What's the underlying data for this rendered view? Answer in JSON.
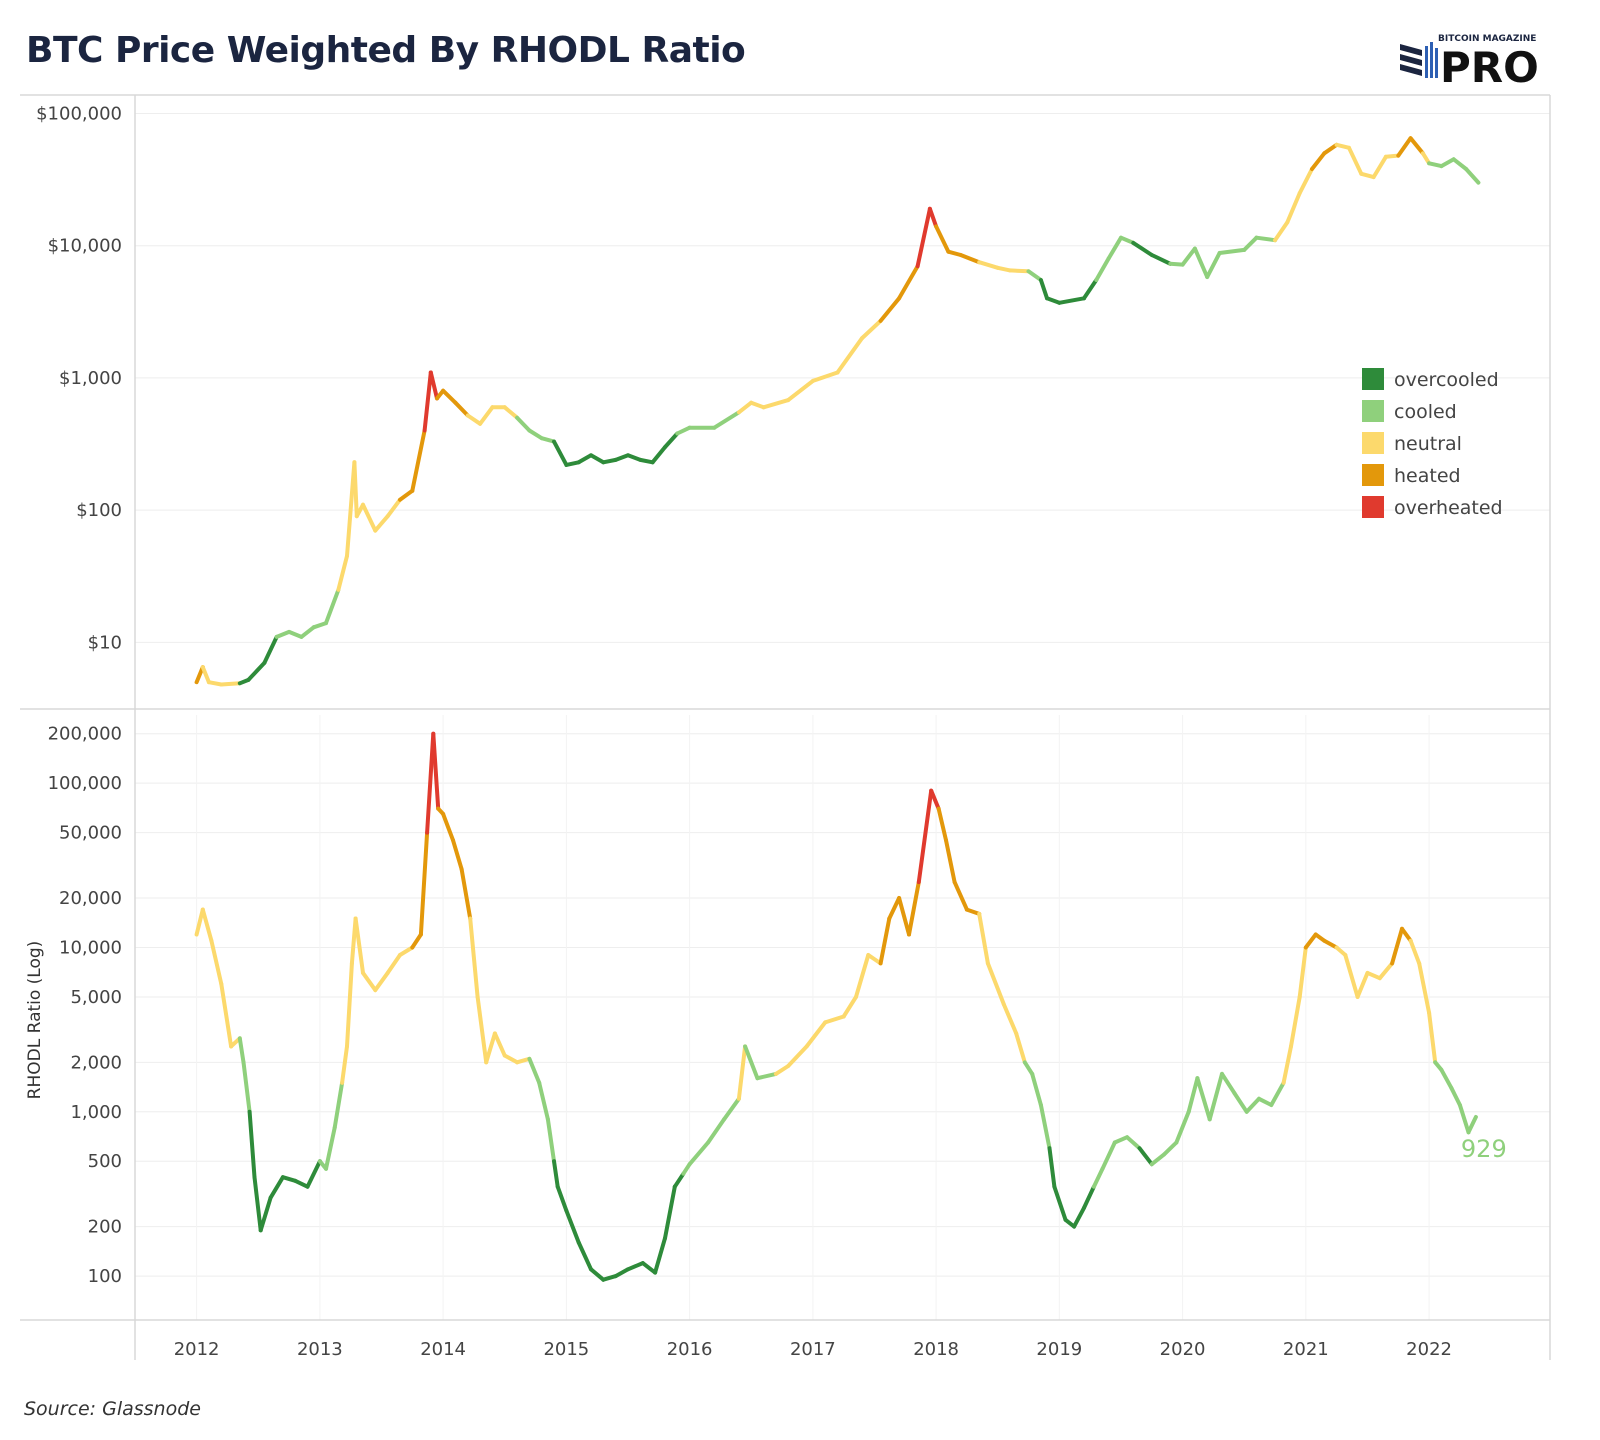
{
  "title": "BTC Price Weighted By RHODL Ratio",
  "logo": {
    "top_text": "BITCOIN MAGAZINE",
    "main_text": "PRO"
  },
  "source": "Source: Glassnode",
  "colors": {
    "overcooled": "#2e8b3a",
    "cooled": "#8fd07c",
    "neutral": "#fcd96c",
    "heated": "#e3980b",
    "overheated": "#e03a2e",
    "title": "#1b2540",
    "grid": "#eeeeee",
    "border": "#d8d8d8"
  },
  "chart_data": [
    {
      "type": "line",
      "name": "price",
      "y_scale": "log",
      "ylim": [
        4,
        120000
      ],
      "y_ticks": [
        {
          "value": 100000,
          "label": "$100,000"
        },
        {
          "value": 10000,
          "label": "$10,000"
        },
        {
          "value": 1000,
          "label": "$1,000"
        },
        {
          "value": 100,
          "label": "$100"
        },
        {
          "value": 10,
          "label": "$10"
        }
      ],
      "legend": {
        "position": "right",
        "entries": [
          {
            "key": "overcooled",
            "label": "overcooled"
          },
          {
            "key": "cooled",
            "label": "cooled"
          },
          {
            "key": "neutral",
            "label": "neutral"
          },
          {
            "key": "heated",
            "label": "heated"
          },
          {
            "key": "overheated",
            "label": "overheated"
          }
        ]
      },
      "points": [
        [
          2012.0,
          5,
          "heated"
        ],
        [
          2012.05,
          6.5,
          "heated"
        ],
        [
          2012.1,
          5,
          "neutral"
        ],
        [
          2012.2,
          4.8,
          "neutral"
        ],
        [
          2012.35,
          4.9,
          "neutral"
        ],
        [
          2012.42,
          5.2,
          "overcooled"
        ],
        [
          2012.55,
          7,
          "overcooled"
        ],
        [
          2012.65,
          11,
          "overcooled"
        ],
        [
          2012.75,
          12,
          "cooled"
        ],
        [
          2012.85,
          11,
          "cooled"
        ],
        [
          2012.95,
          13,
          "cooled"
        ],
        [
          2013.05,
          14,
          "cooled"
        ],
        [
          2013.15,
          25,
          "cooled"
        ],
        [
          2013.22,
          45,
          "neutral"
        ],
        [
          2013.28,
          230,
          "neutral"
        ],
        [
          2013.3,
          90,
          "neutral"
        ],
        [
          2013.35,
          110,
          "neutral"
        ],
        [
          2013.45,
          70,
          "neutral"
        ],
        [
          2013.55,
          90,
          "neutral"
        ],
        [
          2013.65,
          120,
          "neutral"
        ],
        [
          2013.75,
          140,
          "heated"
        ],
        [
          2013.85,
          400,
          "heated"
        ],
        [
          2013.9,
          1100,
          "overheated"
        ],
        [
          2013.95,
          700,
          "overheated"
        ],
        [
          2014.0,
          800,
          "heated"
        ],
        [
          2014.1,
          650,
          "heated"
        ],
        [
          2014.2,
          520,
          "heated"
        ],
        [
          2014.3,
          450,
          "neutral"
        ],
        [
          2014.4,
          600,
          "neutral"
        ],
        [
          2014.5,
          600,
          "neutral"
        ],
        [
          2014.6,
          500,
          "neutral"
        ],
        [
          2014.7,
          400,
          "cooled"
        ],
        [
          2014.8,
          350,
          "cooled"
        ],
        [
          2014.9,
          330,
          "cooled"
        ],
        [
          2015.0,
          220,
          "overcooled"
        ],
        [
          2015.1,
          230,
          "overcooled"
        ],
        [
          2015.2,
          260,
          "overcooled"
        ],
        [
          2015.3,
          230,
          "overcooled"
        ],
        [
          2015.4,
          240,
          "overcooled"
        ],
        [
          2015.5,
          260,
          "overcooled"
        ],
        [
          2015.6,
          240,
          "overcooled"
        ],
        [
          2015.7,
          230,
          "overcooled"
        ],
        [
          2015.8,
          300,
          "overcooled"
        ],
        [
          2015.9,
          380,
          "overcooled"
        ],
        [
          2016.0,
          420,
          "cooled"
        ],
        [
          2016.2,
          420,
          "cooled"
        ],
        [
          2016.4,
          550,
          "cooled"
        ],
        [
          2016.5,
          650,
          "neutral"
        ],
        [
          2016.6,
          600,
          "neutral"
        ],
        [
          2016.8,
          680,
          "neutral"
        ],
        [
          2017.0,
          950,
          "neutral"
        ],
        [
          2017.2,
          1100,
          "neutral"
        ],
        [
          2017.4,
          2000,
          "neutral"
        ],
        [
          2017.55,
          2700,
          "neutral"
        ],
        [
          2017.7,
          4000,
          "heated"
        ],
        [
          2017.85,
          7000,
          "heated"
        ],
        [
          2017.95,
          19000,
          "overheated"
        ],
        [
          2018.0,
          14000,
          "overheated"
        ],
        [
          2018.1,
          9000,
          "heated"
        ],
        [
          2018.2,
          8500,
          "heated"
        ],
        [
          2018.35,
          7500,
          "heated"
        ],
        [
          2018.5,
          6800,
          "neutral"
        ],
        [
          2018.6,
          6500,
          "neutral"
        ],
        [
          2018.75,
          6400,
          "neutral"
        ],
        [
          2018.85,
          5500,
          "cooled"
        ],
        [
          2018.9,
          4000,
          "overcooled"
        ],
        [
          2019.0,
          3700,
          "overcooled"
        ],
        [
          2019.2,
          4000,
          "overcooled"
        ],
        [
          2019.3,
          5500,
          "overcooled"
        ],
        [
          2019.4,
          8000,
          "cooled"
        ],
        [
          2019.5,
          11500,
          "cooled"
        ],
        [
          2019.6,
          10500,
          "cooled"
        ],
        [
          2019.75,
          8500,
          "overcooled"
        ],
        [
          2019.9,
          7300,
          "overcooled"
        ],
        [
          2020.0,
          7200,
          "cooled"
        ],
        [
          2020.1,
          9500,
          "cooled"
        ],
        [
          2020.2,
          5800,
          "cooled"
        ],
        [
          2020.3,
          8800,
          "cooled"
        ],
        [
          2020.5,
          9300,
          "cooled"
        ],
        [
          2020.6,
          11500,
          "cooled"
        ],
        [
          2020.75,
          11000,
          "cooled"
        ],
        [
          2020.85,
          15000,
          "neutral"
        ],
        [
          2020.95,
          25000,
          "neutral"
        ],
        [
          2021.05,
          38000,
          "neutral"
        ],
        [
          2021.15,
          50000,
          "heated"
        ],
        [
          2021.25,
          58000,
          "heated"
        ],
        [
          2021.35,
          55000,
          "neutral"
        ],
        [
          2021.45,
          35000,
          "neutral"
        ],
        [
          2021.55,
          33000,
          "neutral"
        ],
        [
          2021.65,
          47000,
          "neutral"
        ],
        [
          2021.75,
          48000,
          "neutral"
        ],
        [
          2021.85,
          65000,
          "heated"
        ],
        [
          2021.95,
          50000,
          "heated"
        ],
        [
          2022.0,
          42000,
          "neutral"
        ],
        [
          2022.1,
          40000,
          "cooled"
        ],
        [
          2022.2,
          45000,
          "cooled"
        ],
        [
          2022.3,
          38000,
          "cooled"
        ],
        [
          2022.4,
          30000,
          "cooled"
        ]
      ]
    },
    {
      "type": "line",
      "name": "rhodl",
      "y_scale": "log",
      "ylabel": "RHODL Ratio (Log)",
      "ylim": [
        80,
        260000
      ],
      "y_ticks": [
        {
          "value": 200000,
          "label": "200,000"
        },
        {
          "value": 100000,
          "label": "100,000"
        },
        {
          "value": 50000,
          "label": "50,000"
        },
        {
          "value": 20000,
          "label": "20,000"
        },
        {
          "value": 10000,
          "label": "10,000"
        },
        {
          "value": 5000,
          "label": "5,000"
        },
        {
          "value": 2000,
          "label": "2,000"
        },
        {
          "value": 1000,
          "label": "1,000"
        },
        {
          "value": 500,
          "label": "500"
        },
        {
          "value": 200,
          "label": "200"
        },
        {
          "value": 100,
          "label": "100"
        }
      ],
      "x_ticks": [
        "2012",
        "2013",
        "2014",
        "2015",
        "2016",
        "2017",
        "2018",
        "2019",
        "2020",
        "2021",
        "2022"
      ],
      "xlim": [
        2011.5,
        2022.9
      ],
      "end_label": "929",
      "points": [
        [
          2012.0,
          12000,
          "neutral"
        ],
        [
          2012.05,
          17000,
          "neutral"
        ],
        [
          2012.12,
          11000,
          "neutral"
        ],
        [
          2012.2,
          6000,
          "neutral"
        ],
        [
          2012.28,
          2500,
          "neutral"
        ],
        [
          2012.35,
          2800,
          "neutral"
        ],
        [
          2012.38,
          2000,
          "cooled"
        ],
        [
          2012.43,
          1000,
          "cooled"
        ],
        [
          2012.47,
          400,
          "overcooled"
        ],
        [
          2012.52,
          190,
          "overcooled"
        ],
        [
          2012.6,
          300,
          "overcooled"
        ],
        [
          2012.7,
          400,
          "overcooled"
        ],
        [
          2012.8,
          380,
          "overcooled"
        ],
        [
          2012.9,
          350,
          "overcooled"
        ],
        [
          2013.0,
          500,
          "overcooled"
        ],
        [
          2013.05,
          450,
          "cooled"
        ],
        [
          2013.12,
          800,
          "cooled"
        ],
        [
          2013.18,
          1500,
          "cooled"
        ],
        [
          2013.22,
          2500,
          "neutral"
        ],
        [
          2013.26,
          8000,
          "neutral"
        ],
        [
          2013.29,
          15000,
          "neutral"
        ],
        [
          2013.35,
          7000,
          "neutral"
        ],
        [
          2013.45,
          5500,
          "neutral"
        ],
        [
          2013.55,
          7000,
          "neutral"
        ],
        [
          2013.65,
          9000,
          "neutral"
        ],
        [
          2013.75,
          10000,
          "neutral"
        ],
        [
          2013.82,
          12000,
          "heated"
        ],
        [
          2013.87,
          50000,
          "heated"
        ],
        [
          2013.92,
          200000,
          "overheated"
        ],
        [
          2013.96,
          70000,
          "overheated"
        ],
        [
          2014.0,
          65000,
          "heated"
        ],
        [
          2014.08,
          45000,
          "heated"
        ],
        [
          2014.15,
          30000,
          "heated"
        ],
        [
          2014.22,
          15000,
          "heated"
        ],
        [
          2014.28,
          5000,
          "neutral"
        ],
        [
          2014.35,
          2000,
          "neutral"
        ],
        [
          2014.42,
          3000,
          "neutral"
        ],
        [
          2014.5,
          2200,
          "neutral"
        ],
        [
          2014.6,
          2000,
          "neutral"
        ],
        [
          2014.7,
          2100,
          "neutral"
        ],
        [
          2014.78,
          1500,
          "cooled"
        ],
        [
          2014.85,
          900,
          "cooled"
        ],
        [
          2014.9,
          500,
          "cooled"
        ],
        [
          2014.93,
          350,
          "overcooled"
        ],
        [
          2015.0,
          250,
          "overcooled"
        ],
        [
          2015.1,
          160,
          "overcooled"
        ],
        [
          2015.2,
          110,
          "overcooled"
        ],
        [
          2015.3,
          95,
          "overcooled"
        ],
        [
          2015.4,
          100,
          "overcooled"
        ],
        [
          2015.5,
          110,
          "overcooled"
        ],
        [
          2015.62,
          120,
          "overcooled"
        ],
        [
          2015.72,
          105,
          "overcooled"
        ],
        [
          2015.8,
          170,
          "overcooled"
        ],
        [
          2015.88,
          350,
          "overcooled"
        ],
        [
          2015.95,
          420,
          "overcooled"
        ],
        [
          2016.0,
          480,
          "cooled"
        ],
        [
          2016.15,
          650,
          "cooled"
        ],
        [
          2016.28,
          900,
          "cooled"
        ],
        [
          2016.4,
          1200,
          "cooled"
        ],
        [
          2016.45,
          2500,
          "neutral"
        ],
        [
          2016.55,
          1600,
          "cooled"
        ],
        [
          2016.7,
          1700,
          "cooled"
        ],
        [
          2016.8,
          1900,
          "neutral"
        ],
        [
          2016.95,
          2500,
          "neutral"
        ],
        [
          2017.1,
          3500,
          "neutral"
        ],
        [
          2017.25,
          3800,
          "neutral"
        ],
        [
          2017.35,
          5000,
          "neutral"
        ],
        [
          2017.45,
          9000,
          "neutral"
        ],
        [
          2017.55,
          8000,
          "neutral"
        ],
        [
          2017.62,
          15000,
          "heated"
        ],
        [
          2017.7,
          20000,
          "heated"
        ],
        [
          2017.78,
          12000,
          "heated"
        ],
        [
          2017.86,
          25000,
          "heated"
        ],
        [
          2017.96,
          90000,
          "overheated"
        ],
        [
          2018.02,
          70000,
          "overheated"
        ],
        [
          2018.08,
          45000,
          "heated"
        ],
        [
          2018.15,
          25000,
          "heated"
        ],
        [
          2018.25,
          17000,
          "heated"
        ],
        [
          2018.35,
          16000,
          "heated"
        ],
        [
          2018.42,
          8000,
          "neutral"
        ],
        [
          2018.55,
          4500,
          "neutral"
        ],
        [
          2018.65,
          3000,
          "neutral"
        ],
        [
          2018.72,
          2000,
          "neutral"
        ],
        [
          2018.78,
          1700,
          "cooled"
        ],
        [
          2018.85,
          1100,
          "cooled"
        ],
        [
          2018.92,
          600,
          "cooled"
        ],
        [
          2018.96,
          350,
          "overcooled"
        ],
        [
          2019.05,
          220,
          "overcooled"
        ],
        [
          2019.12,
          200,
          "overcooled"
        ],
        [
          2019.2,
          260,
          "overcooled"
        ],
        [
          2019.28,
          350,
          "overcooled"
        ],
        [
          2019.35,
          450,
          "cooled"
        ],
        [
          2019.45,
          650,
          "cooled"
        ],
        [
          2019.55,
          700,
          "cooled"
        ],
        [
          2019.65,
          600,
          "cooled"
        ],
        [
          2019.75,
          480,
          "overcooled"
        ],
        [
          2019.85,
          550,
          "cooled"
        ],
        [
          2019.95,
          650,
          "cooled"
        ],
        [
          2020.05,
          1000,
          "cooled"
        ],
        [
          2020.12,
          1600,
          "cooled"
        ],
        [
          2020.22,
          900,
          "cooled"
        ],
        [
          2020.32,
          1700,
          "cooled"
        ],
        [
          2020.42,
          1300,
          "cooled"
        ],
        [
          2020.52,
          1000,
          "cooled"
        ],
        [
          2020.62,
          1200,
          "cooled"
        ],
        [
          2020.72,
          1100,
          "cooled"
        ],
        [
          2020.82,
          1500,
          "cooled"
        ],
        [
          2020.88,
          2500,
          "neutral"
        ],
        [
          2020.95,
          5000,
          "neutral"
        ],
        [
          2021.0,
          10000,
          "neutral"
        ],
        [
          2021.08,
          12000,
          "heated"
        ],
        [
          2021.15,
          11000,
          "heated"
        ],
        [
          2021.25,
          10000,
          "heated"
        ],
        [
          2021.32,
          9000,
          "neutral"
        ],
        [
          2021.42,
          5000,
          "neutral"
        ],
        [
          2021.5,
          7000,
          "neutral"
        ],
        [
          2021.6,
          6500,
          "neutral"
        ],
        [
          2021.7,
          8000,
          "neutral"
        ],
        [
          2021.78,
          13000,
          "heated"
        ],
        [
          2021.85,
          11000,
          "heated"
        ],
        [
          2021.92,
          8000,
          "neutral"
        ],
        [
          2022.0,
          4000,
          "neutral"
        ],
        [
          2022.05,
          2000,
          "neutral"
        ],
        [
          2022.1,
          1800,
          "cooled"
        ],
        [
          2022.18,
          1400,
          "cooled"
        ],
        [
          2022.25,
          1100,
          "cooled"
        ],
        [
          2022.32,
          750,
          "cooled"
        ],
        [
          2022.38,
          929,
          "cooled"
        ]
      ]
    }
  ]
}
